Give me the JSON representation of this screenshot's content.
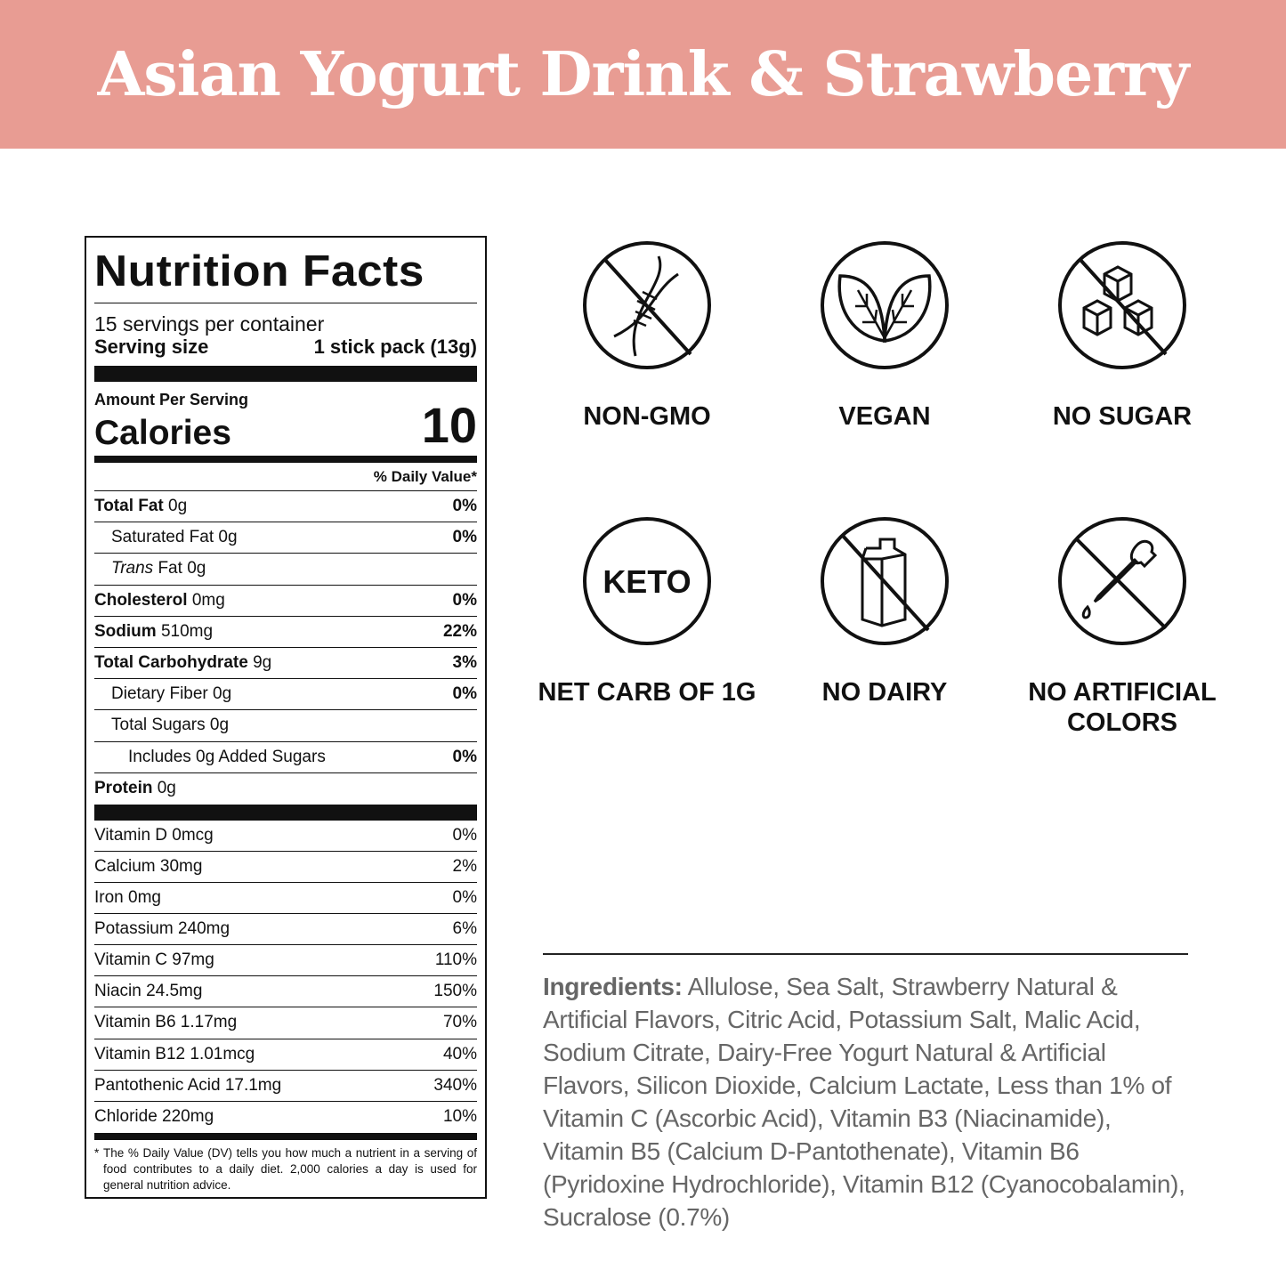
{
  "title": "Asian Yogurt Drink & Strawberry",
  "header_color": "#e89c93",
  "nutrition": {
    "heading": "Nutrition Facts",
    "servings": "15 servings per container",
    "serving_size_label": "Serving size",
    "serving_size_value": "1 stick pack (13g)",
    "amount_per_serving": "Amount Per Serving",
    "calories_label": "Calories",
    "calories_value": "10",
    "dv_header": "% Daily Value*",
    "rows": [
      {
        "name": "Total Fat",
        "amount": "0g",
        "dv": "0%"
      },
      {
        "name": "Saturated Fat",
        "amount": "0g",
        "dv": "0%"
      },
      {
        "name": "Trans",
        "name2": "Fat",
        "amount": "0g",
        "dv": ""
      },
      {
        "name": "Cholesterol",
        "amount": "0mg",
        "dv": "0%"
      },
      {
        "name": "Sodium",
        "amount": "510mg",
        "dv": "22%"
      },
      {
        "name": "Total Carbohydrate",
        "amount": "9g",
        "dv": "3%"
      },
      {
        "name": "Dietary Fiber",
        "amount": "0g",
        "dv": "0%"
      },
      {
        "name": "Total Sugars",
        "amount": "0g",
        "dv": ""
      },
      {
        "name": "Includes 0g Added Sugars",
        "amount": "",
        "dv": "0%"
      },
      {
        "name": "Protein",
        "amount": "0g",
        "dv": ""
      }
    ],
    "vitamins": [
      {
        "label": "Vitamin D 0mcg",
        "dv": "0%"
      },
      {
        "label": "Calcium 30mg",
        "dv": "2%"
      },
      {
        "label": "Iron 0mg",
        "dv": "0%"
      },
      {
        "label": "Potassium 240mg",
        "dv": "6%"
      },
      {
        "label": "Vitamin C 97mg",
        "dv": "110%"
      },
      {
        "label": "Niacin 24.5mg",
        "dv": "150%"
      },
      {
        "label": "Vitamin B6 1.17mg",
        "dv": "70%"
      },
      {
        "label": "Vitamin B12 1.01mcg",
        "dv": "40%"
      },
      {
        "label": "Pantothenic Acid 17.1mg",
        "dv": "340%"
      },
      {
        "label": "Chloride 220mg",
        "dv": "10%"
      }
    ],
    "footnote_star": "*",
    "footnote": "The % Daily Value (DV) tells you how much a nutrient in a serving of food contributes to a daily diet. 2,000 calories a day is used for general nutrition advice."
  },
  "badges": [
    {
      "icon": "no-dna-icon",
      "label": "NON-GMO"
    },
    {
      "icon": "leaves-icon",
      "label": "VEGAN"
    },
    {
      "icon": "no-sugar-cubes-icon",
      "label": "NO SUGAR"
    },
    {
      "icon": "keto-icon",
      "icon_text": "KETO",
      "label": "NET CARB OF 1G"
    },
    {
      "icon": "no-milk-carton-icon",
      "label": "NO DAIRY"
    },
    {
      "icon": "no-dropper-icon",
      "label": "NO ARTIFICIAL COLORS"
    }
  ],
  "ingredients": {
    "label": "Ingredients:",
    "text": " Allulose, Sea Salt, Strawberry Natural & Artificial Flavors, Citric Acid, Potassium Salt, Malic Acid, Sodium Citrate, Dairy-Free Yogurt Natural & Artificial Flavors, Silicon Dioxide, Calcium Lactate, Less than 1% of Vitamin C (Ascorbic Acid), Vitamin B3 (Niacinamide), Vitamin B5 (Calcium D-Pantothenate), Vitamin B6 (Pyridoxine Hydrochloride), Vitamin B12 (Cyanocobalamin), Sucralose (0.7%)"
  }
}
